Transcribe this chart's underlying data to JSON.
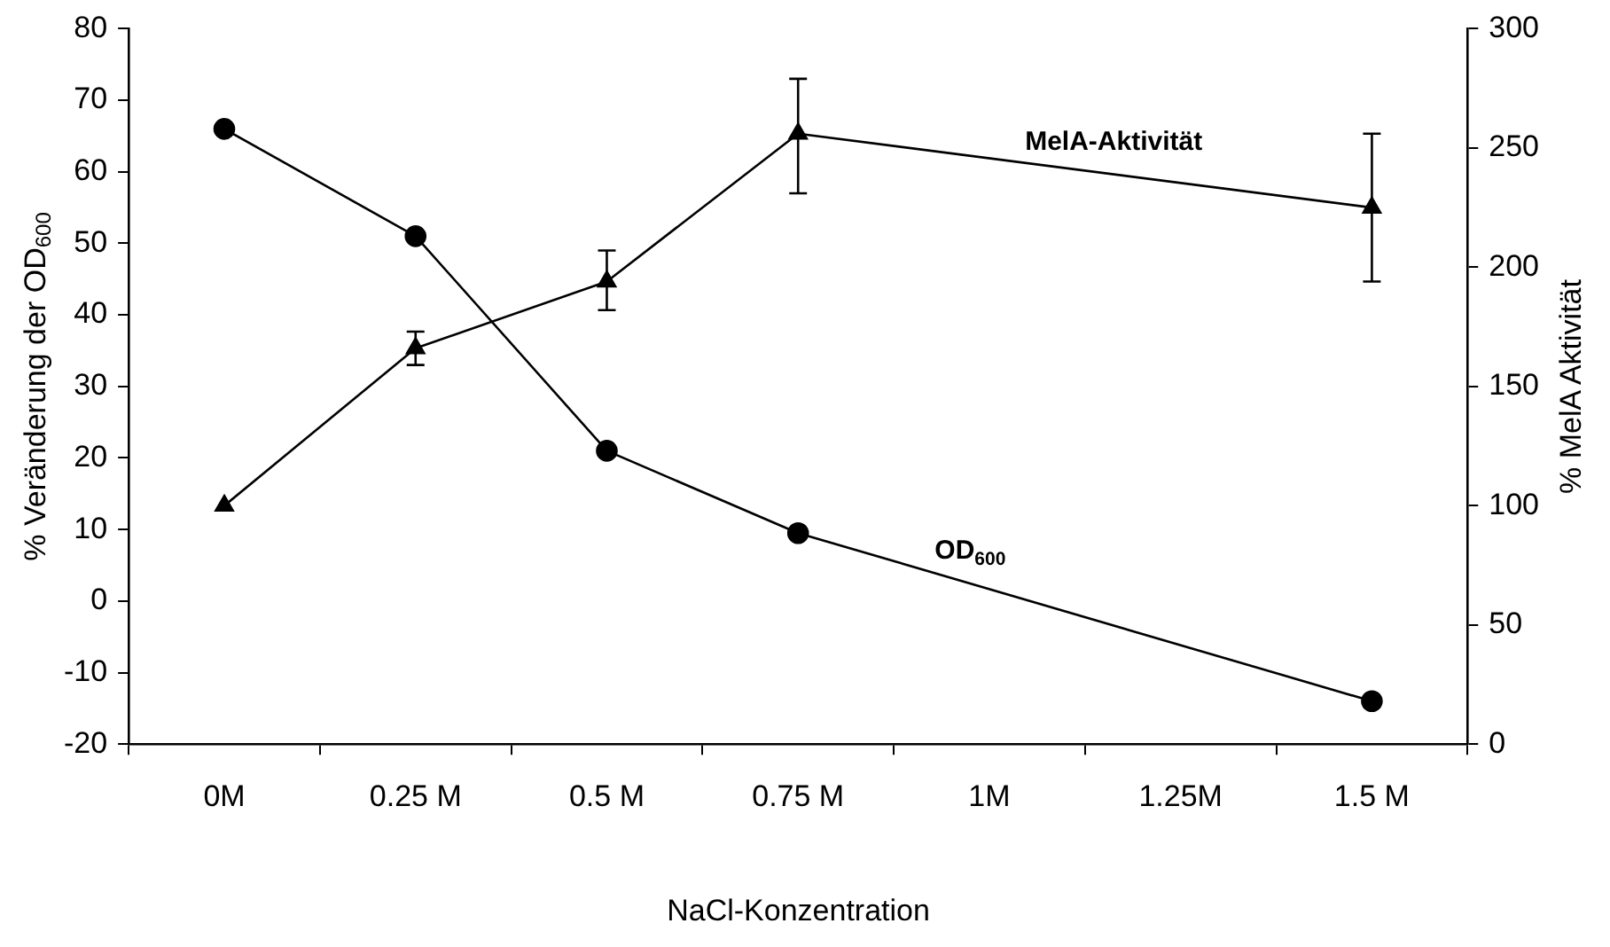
{
  "chart_data": {
    "type": "line",
    "xlabel": "NaCl-Konzentration",
    "ylabel": "% Veränderung der OD$_{600}$",
    "y2label": "% MelA Aktivität",
    "categories": [
      "0M",
      "0.25 M",
      "0.5 M",
      "0.75 M",
      "1M",
      "1.25M",
      "1.5 M"
    ],
    "series": [
      {
        "name": "OD$_{600}$",
        "color": "#000000",
        "marker": "circle",
        "values": [
          66,
          51,
          21,
          9.5,
          null,
          null,
          -14
        ]
      },
      {
        "name": "MelA-Aktivität",
        "color": "#000000",
        "marker": "triangle",
        "axis": "y2",
        "values": [
          100,
          166,
          194,
          256,
          null,
          null,
          225
        ],
        "errors": [
          null,
          [
            159,
            173
          ],
          [
            182,
            207
          ],
          [
            231,
            279
          ],
          null,
          null,
          [
            194,
            256
          ]
        ]
      }
    ],
    "ylim": [
      -20,
      80
    ],
    "yticks": [
      -20,
      -10,
      0,
      10,
      20,
      30,
      40,
      50,
      60,
      70,
      80
    ],
    "y2lim": [
      0,
      300
    ],
    "y2ticks": [
      0,
      50,
      100,
      150,
      200,
      250,
      300
    ],
    "grid": false,
    "legend": false
  }
}
